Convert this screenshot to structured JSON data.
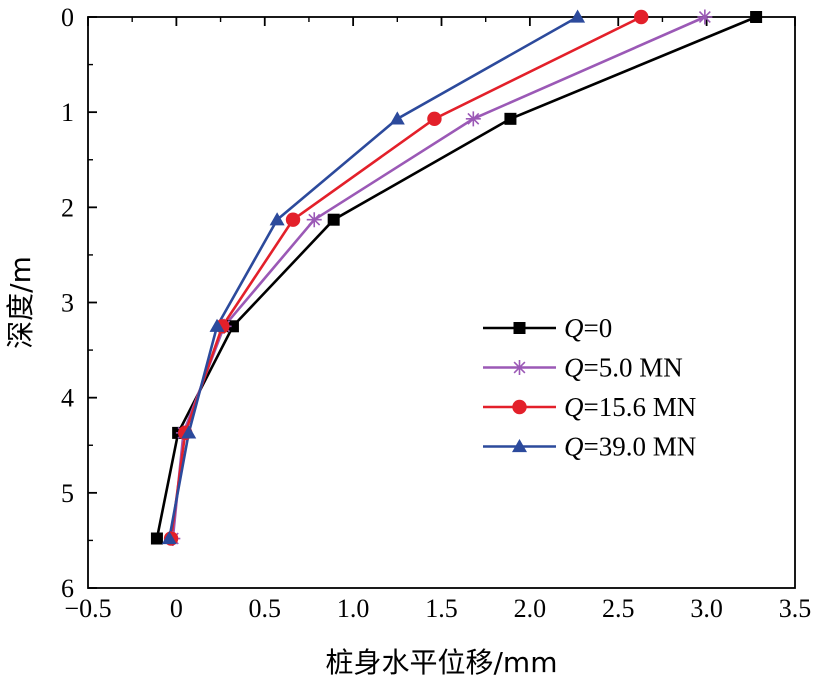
{
  "chart_data": {
    "type": "line",
    "xlabel": "桩身水平位移/mm",
    "ylabel": "深度/m",
    "xlim": [
      -0.5,
      3.5
    ],
    "ylim": [
      0,
      6
    ],
    "y_inverted": true,
    "x_axis_position": "top",
    "x_tick_labels_position": "bottom",
    "xticks": [
      "−0.5",
      "0",
      "0.5",
      "1.0",
      "1.5",
      "2.0",
      "2.5",
      "3.0",
      "3.5"
    ],
    "yticks": [
      "0",
      "1",
      "2",
      "3",
      "4",
      "5",
      "6"
    ],
    "grid": false,
    "legend_position": "right",
    "series": [
      {
        "name": "Q=0",
        "name_var": "Q",
        "name_rest": "=0",
        "color": "#000000",
        "marker": "square",
        "x": [
          3.28,
          1.89,
          0.89,
          0.32,
          0.01,
          -0.11
        ],
        "y": [
          0,
          1.07,
          2.13,
          3.25,
          4.37,
          5.48
        ]
      },
      {
        "name": "Q=5.0 MN",
        "name_var": "Q",
        "name_rest": "=5.0 MN",
        "color": "#9b59b6",
        "marker": "asterisk",
        "x": [
          2.99,
          1.68,
          0.78,
          0.27,
          0.04,
          -0.02
        ],
        "y": [
          0,
          1.07,
          2.13,
          3.25,
          4.37,
          5.48
        ]
      },
      {
        "name": "Q=15.6 MN",
        "name_var": "Q",
        "name_rest": "=15.6 MN",
        "color": "#e3202a",
        "marker": "circle",
        "x": [
          2.63,
          1.46,
          0.66,
          0.26,
          0.05,
          -0.03
        ],
        "y": [
          0,
          1.07,
          2.13,
          3.25,
          4.37,
          5.48
        ]
      },
      {
        "name": "Q=39.0 MN",
        "name_var": "Q",
        "name_rest": "=39.0 MN",
        "color": "#2c4a9c",
        "marker": "triangle",
        "x": [
          2.27,
          1.25,
          0.57,
          0.23,
          0.07,
          -0.04
        ],
        "y": [
          0,
          1.07,
          2.13,
          3.25,
          4.37,
          5.48
        ]
      }
    ]
  }
}
